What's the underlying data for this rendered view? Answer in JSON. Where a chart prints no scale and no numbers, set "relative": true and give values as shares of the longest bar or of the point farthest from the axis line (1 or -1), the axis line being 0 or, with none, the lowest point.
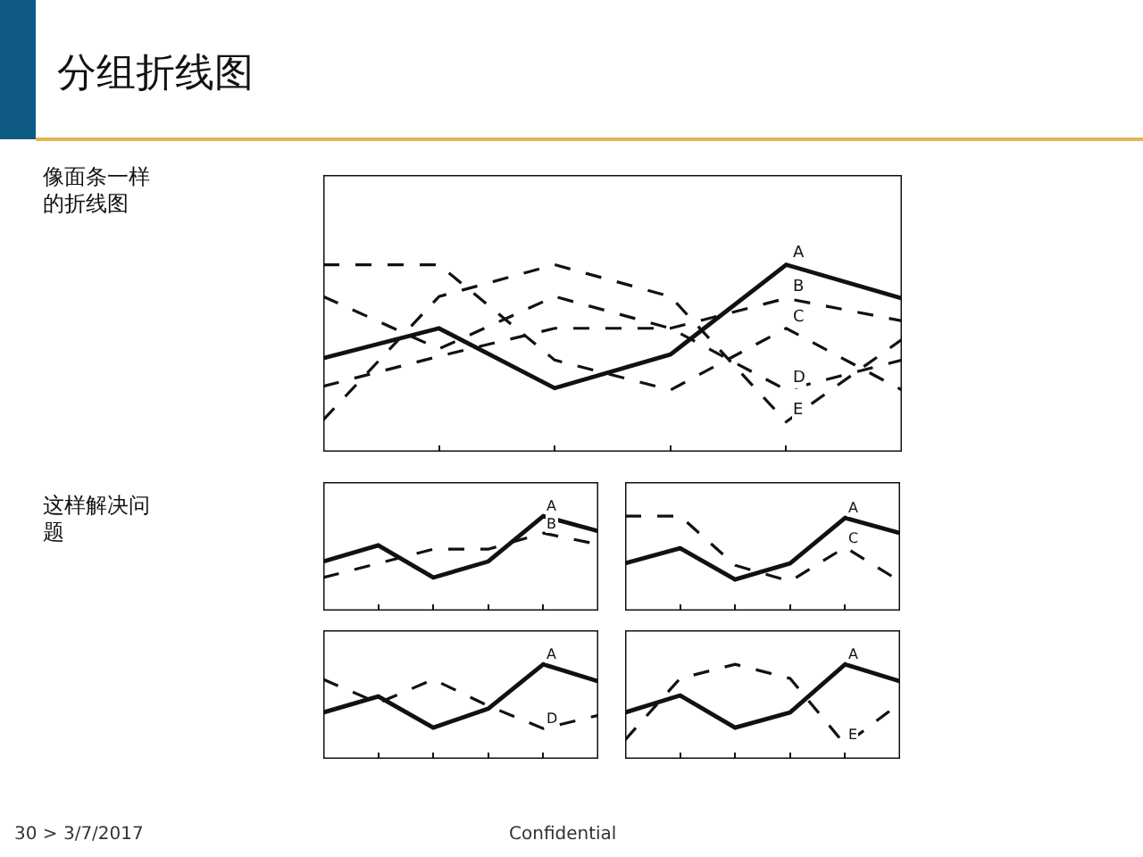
{
  "chart_data": [
    {
      "type": "line",
      "title": "分组折线图",
      "relative": true,
      "categories": [
        null,
        null,
        null,
        null,
        null,
        null
      ],
      "grid": false,
      "legend": false,
      "marker": "none",
      "tick_labels": false,
      "annotations": [
        "像面条一样的折线图",
        "30 > 3/7/2017",
        "Confidential"
      ],
      "series": [
        {
          "name": "A",
          "color": "#111111",
          "line_style": "solid",
          "values": [
            0.5,
            0.66,
            0.34,
            0.52,
            1,
            0.82
          ]
        },
        {
          "name": "B",
          "color": "#111111",
          "line_style": "dashed",
          "values": [
            0.35,
            0.51,
            0.66,
            0.66,
            0.82,
            0.7
          ]
        },
        {
          "name": "C",
          "color": "#111111",
          "line_style": "dashed",
          "values": [
            1,
            1,
            0.49,
            0.33,
            0.66,
            0.33
          ]
        },
        {
          "name": "D",
          "color": "#111111",
          "line_style": "dashed",
          "values": [
            0.83,
            0.55,
            0.83,
            0.66,
            0.33,
            0.49
          ]
        },
        {
          "name": "E",
          "color": "#111111",
          "line_style": "dashed",
          "values": [
            0.17,
            0.83,
            1,
            0.83,
            0.16,
            0.6
          ]
        }
      ]
    },
    {
      "type": "line",
      "relative": true,
      "categories": [
        null,
        null,
        null,
        null,
        null,
        null
      ],
      "grid": false,
      "legend": false,
      "marker": "none",
      "tick_labels": false,
      "annotations": [
        "这样解决问题"
      ],
      "series": [
        {
          "name": "A",
          "color": "#111111",
          "line_style": "solid",
          "values": [
            0.52,
            0.69,
            0.35,
            0.52,
            1,
            0.84
          ]
        },
        {
          "name": "B",
          "color": "#111111",
          "line_style": "dashed",
          "values": [
            0.35,
            0.5,
            0.65,
            0.65,
            0.82,
            0.7
          ]
        }
      ]
    },
    {
      "type": "line",
      "relative": true,
      "categories": [
        null,
        null,
        null,
        null,
        null,
        null
      ],
      "grid": false,
      "legend": false,
      "marker": "none",
      "tick_labels": false,
      "series": [
        {
          "name": "A",
          "color": "#111111",
          "line_style": "solid",
          "values": [
            0.5,
            0.66,
            0.33,
            0.5,
            0.98,
            0.82
          ]
        },
        {
          "name": "C",
          "color": "#111111",
          "line_style": "dashed",
          "values": [
            1,
            1,
            0.48,
            0.31,
            0.67,
            0.31
          ]
        }
      ]
    },
    {
      "type": "line",
      "relative": true,
      "categories": [
        null,
        null,
        null,
        null,
        null,
        null
      ],
      "grid": false,
      "legend": false,
      "marker": "none",
      "tick_labels": false,
      "series": [
        {
          "name": "A",
          "color": "#111111",
          "line_style": "solid",
          "values": [
            0.49,
            0.66,
            0.33,
            0.53,
            1,
            0.82
          ]
        },
        {
          "name": "D",
          "color": "#111111",
          "line_style": "dashed",
          "values": [
            0.84,
            0.59,
            0.84,
            0.56,
            0.32,
            0.46
          ]
        }
      ]
    },
    {
      "type": "line",
      "relative": true,
      "categories": [
        null,
        null,
        null,
        null,
        null,
        null
      ],
      "grid": false,
      "legend": false,
      "marker": "none",
      "tick_labels": false,
      "series": [
        {
          "name": "A",
          "color": "#111111",
          "line_style": "solid",
          "values": [
            0.49,
            0.67,
            0.33,
            0.49,
            1,
            0.82
          ]
        },
        {
          "name": "E",
          "color": "#111111",
          "line_style": "dashed",
          "values": [
            0.2,
            0.85,
            1,
            0.85,
            0.15,
            0.59
          ]
        }
      ]
    }
  ]
}
